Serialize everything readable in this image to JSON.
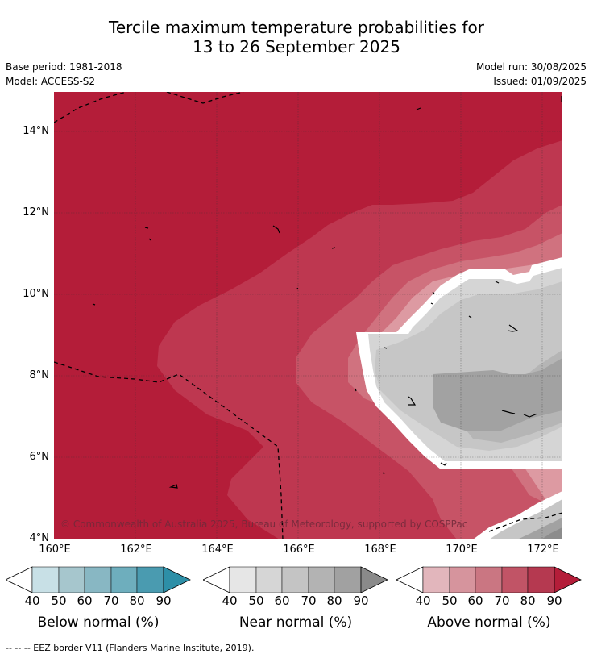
{
  "title": {
    "line1": "Tercile maximum temperature probabilities for",
    "line2": "13 to 26 September 2025"
  },
  "meta": {
    "base_period": "Base period: 1981-2018",
    "model": "Model: ACCESS-S2",
    "model_run": "Model run: 30/08/2025",
    "issued": "Issued: 01/09/2025"
  },
  "map": {
    "lat_labels": [
      "14°N",
      "12°N",
      "10°N",
      "8°N",
      "6°N",
      "4°N"
    ],
    "lon_labels": [
      "160°E",
      "162°E",
      "164°E",
      "166°E",
      "168°E",
      "170°E",
      "172°E"
    ],
    "copyright": "© Commonwealth of Australia 2025, Bureau of Meteorology, supported by COSPPac",
    "colors": {
      "above_90": "#b41d39",
      "above_80": "#be3750",
      "above_70": "#c75366",
      "above_60": "#d0727f",
      "above_50": "#dd9aa2",
      "boundary": "#ffffff",
      "near_50": "#d5d5d5",
      "near_60": "#c6c6c6",
      "near_70": "#b5b5b5",
      "near_80": "#a2a2a2",
      "near_90": "#8c8c8c"
    }
  },
  "colorbars": [
    {
      "label": "Below normal (%)",
      "ticks": [
        "40",
        "50",
        "60",
        "70",
        "80",
        "90"
      ],
      "colors": [
        "#c8e0e6",
        "#a6c6cd",
        "#88b7c3",
        "#6eaebd",
        "#4a9bb0",
        "#2d8fa7"
      ]
    },
    {
      "label": "Near normal (%)",
      "ticks": [
        "40",
        "50",
        "60",
        "70",
        "80",
        "90"
      ],
      "colors": [
        "#e6e6e6",
        "#d6d6d6",
        "#c4c4c4",
        "#b3b3b3",
        "#a1a1a1",
        "#8a8a8a"
      ]
    },
    {
      "label": "Above normal (%)",
      "ticks": [
        "40",
        "50",
        "60",
        "70",
        "80",
        "90"
      ],
      "colors": [
        "#e2b6bc",
        "#d6949d",
        "#ca7682",
        "#c15466",
        "#b53950",
        "#b41d39"
      ]
    }
  ],
  "footer": "--  --  -- EEZ border V11 (Flanders Marine Institute, 2019)."
}
